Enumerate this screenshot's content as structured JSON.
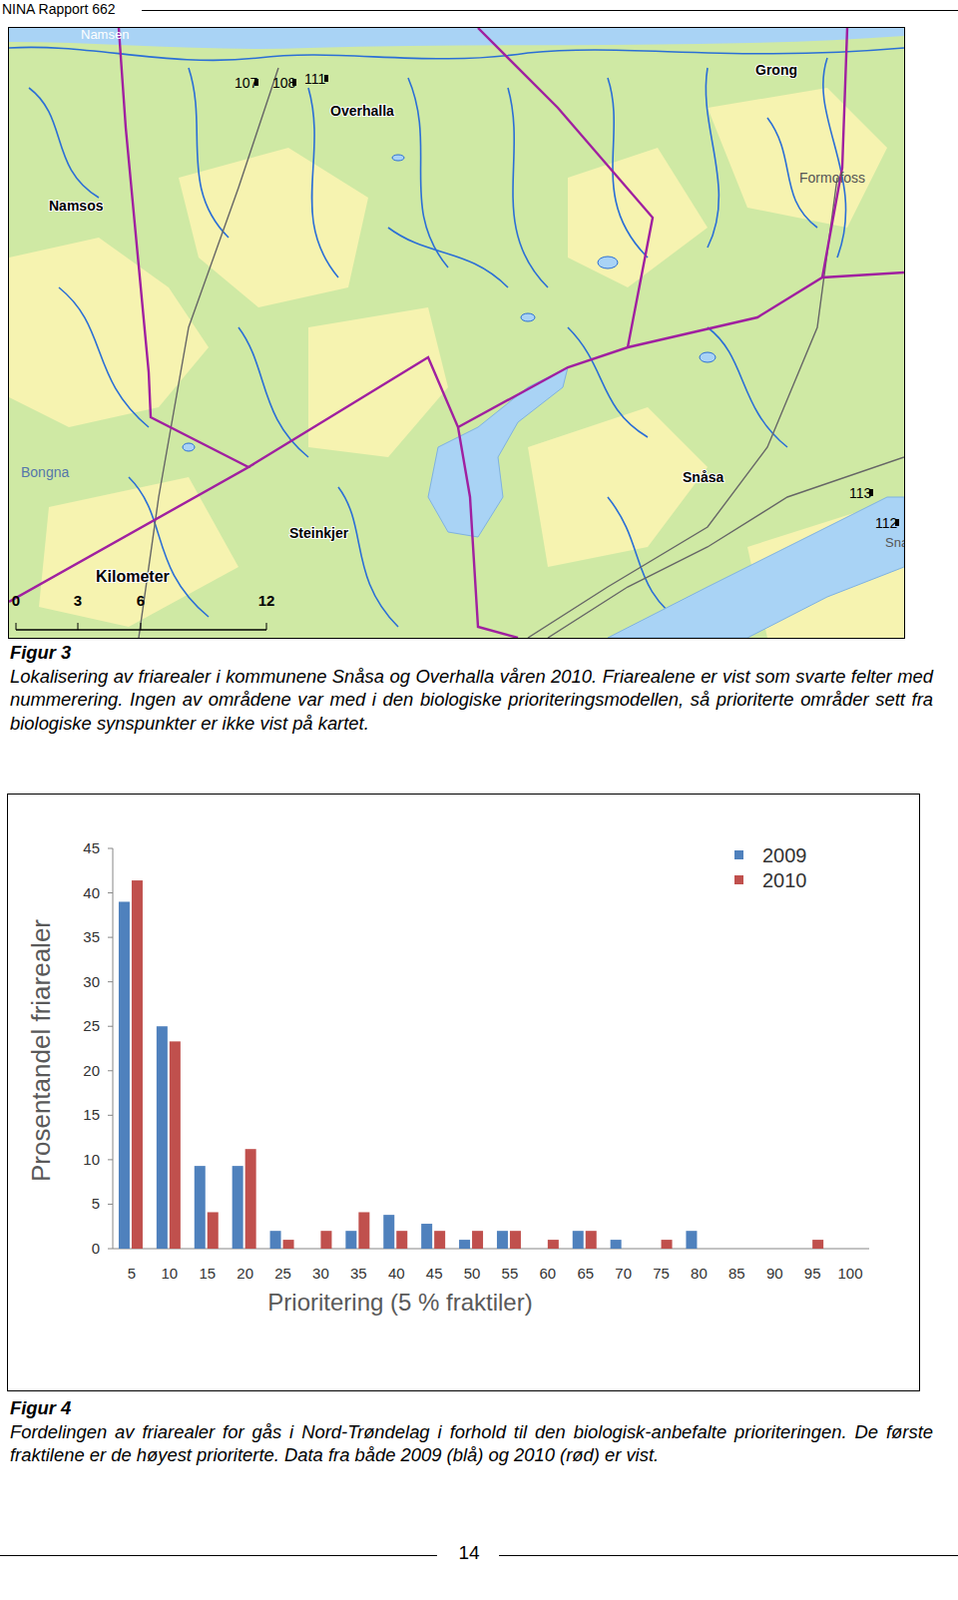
{
  "header": {
    "title": "NINA Rapport 662"
  },
  "figure3": {
    "map": {
      "labels": [
        "Namsen",
        "Namsos",
        "Overhalla",
        "Grong",
        "Formofoss",
        "Bongna",
        "Steinkjer",
        "Snåsa",
        "Sna"
      ],
      "areas": [
        "107",
        "108",
        "111",
        "113",
        "112"
      ],
      "scale": {
        "title": "Kilometer",
        "ticks": [
          "0",
          "3",
          "6",
          "12"
        ]
      }
    },
    "caption_title": "Figur 3",
    "caption": "Lokalisering av friarealer i kommunene Snåsa og Overhalla våren 2010. Friarealene er vist som svarte felter med nummerering. Ingen av områdene var med i den biologiske prioriteringsmodellen, så prioriterte områder sett fra biologiske synspunkter er ikke vist på kartet."
  },
  "chart_data": {
    "type": "bar",
    "x_label": "Prioritering (5 % fraktiler)",
    "y_label": "Prosentandel friarealer",
    "categories": [
      "5",
      "10",
      "15",
      "20",
      "25",
      "30",
      "35",
      "40",
      "45",
      "50",
      "55",
      "60",
      "65",
      "70",
      "75",
      "80",
      "85",
      "90",
      "95",
      "100"
    ],
    "series": [
      {
        "name": "2009",
        "color": "#4f81bd",
        "values": [
          39,
          25,
          9.3,
          9.3,
          2,
          0,
          2,
          3.8,
          2.8,
          1,
          2,
          0,
          2,
          1,
          0,
          2,
          0,
          0,
          0,
          0
        ]
      },
      {
        "name": "2010",
        "color": "#c0504d",
        "values": [
          41.4,
          23.3,
          4.1,
          11.2,
          1,
          2,
          4.1,
          2,
          2,
          2,
          2,
          1,
          2,
          0,
          1,
          0,
          0,
          0,
          1,
          0
        ]
      }
    ],
    "ylim": [
      0,
      45
    ],
    "yticks": [
      0,
      5,
      10,
      15,
      20,
      25,
      30,
      35,
      40,
      45
    ],
    "grid": false,
    "legend": "top-right"
  },
  "figure4": {
    "caption_title": "Figur 4",
    "caption": "Fordelingen av friarealer for gås i Nord-Trøndelag i forhold til den biologisk-anbefalte prioriteringen. De første fraktilene er de høyest prioriterte. Data fra både 2009 (blå) og 2010 (rød) er vist."
  },
  "page_number": "14"
}
